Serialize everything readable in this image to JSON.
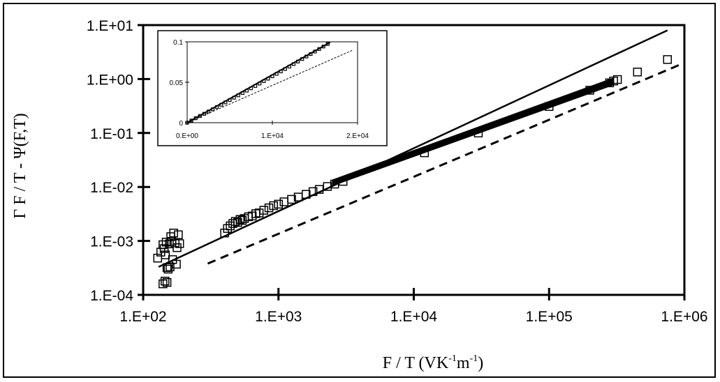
{
  "chart_data": [
    {
      "type": "scatter",
      "title": "",
      "xlabel": "F / T (VK-1m-1)",
      "xlabel_parts": {
        "main": "F / T  (VK",
        "sup1": "-1",
        "mid": "m",
        "sup2": "-1",
        "end": ")"
      },
      "ylabel": "Γ F / T - Ψ(F,T)",
      "xscale": "log",
      "yscale": "log",
      "xlim": [
        100,
        1000000
      ],
      "ylim": [
        0.0001,
        10
      ],
      "x_ticks": [
        100,
        1000,
        10000,
        100000,
        1000000
      ],
      "x_tick_labels": [
        "1.E+02",
        "1.E+03",
        "1.E+04",
        "1.E+05",
        "1.E+06"
      ],
      "y_ticks": [
        0.0001,
        0.001,
        0.01,
        0.1,
        1,
        10
      ],
      "y_tick_labels": [
        "1.E-04",
        "1.E-03",
        "1.E-02",
        "1.E-01",
        "1.E+00",
        "1.E+01"
      ],
      "grid": false,
      "series": [
        {
          "style": "markers",
          "marker": "open-square",
          "x": [
            128,
            135,
            140,
            143,
            146,
            148,
            150,
            153,
            156,
            160,
            163,
            168,
            172,
            176,
            182,
            186,
            140,
            145,
            150,
            158,
            165,
            178,
            400,
            420,
            440,
            460,
            480,
            500,
            520,
            540,
            560,
            600,
            640,
            680,
            720,
            780,
            850,
            920,
            1000,
            1100,
            1250,
            1400,
            1600,
            1800,
            2000,
            2300,
            2600,
            3000,
            12000,
            30000,
            100000,
            200000,
            280000,
            300000,
            320000,
            450000,
            750000
          ],
          "y": [
            0.00048,
            0.00062,
            0.00085,
            0.00072,
            0.00055,
            0.00095,
            0.00032,
            0.0003,
            0.00088,
            0.0012,
            0.00098,
            0.0014,
            0.00092,
            0.00037,
            0.0013,
            0.00089,
            0.00016,
            0.00018,
            0.00017,
            0.00033,
            0.00045,
            0.00075,
            0.0014,
            0.0017,
            0.0019,
            0.0021,
            0.0023,
            0.0022,
            0.0025,
            0.0024,
            0.0026,
            0.0028,
            0.0029,
            0.0032,
            0.0033,
            0.0037,
            0.0041,
            0.0045,
            0.0048,
            0.0053,
            0.0059,
            0.0065,
            0.0073,
            0.0082,
            0.009,
            0.0102,
            0.0113,
            0.0127,
            0.043,
            0.1,
            0.31,
            0.62,
            0.85,
            0.92,
            0.98,
            1.35,
            2.3
          ]
        },
        {
          "style": "solid-line",
          "x": [
            130,
            750000
          ],
          "y": [
            0.00033,
            8
          ]
        },
        {
          "style": "dashed-line",
          "x": [
            300,
            1000000
          ],
          "y": [
            0.00038,
            2.0
          ]
        }
      ]
    },
    {
      "type": "scatter",
      "title": "",
      "xscale": "linear",
      "yscale": "linear",
      "xlim": [
        0,
        20000
      ],
      "ylim": [
        0,
        0.1
      ],
      "x_ticks": [
        0,
        10000,
        20000
      ],
      "x_tick_labels": [
        "0.E+00",
        "1.E+04",
        "2.E+04"
      ],
      "y_ticks": [
        0,
        0.05,
        0.1
      ],
      "y_tick_labels": [
        "0",
        "0.05",
        "0.1"
      ],
      "grid": false,
      "series": [
        {
          "style": "markers",
          "marker": "open-square",
          "x": [
            0,
            500,
            1000,
            1500,
            2000,
            2500,
            3000,
            3500,
            4000,
            4500,
            5000,
            5500,
            6000,
            6500,
            7000,
            7500,
            8000,
            8500,
            9000,
            9500,
            10000,
            10500,
            11000,
            11500,
            12000,
            12500,
            13000,
            13500,
            14000,
            14500,
            15000,
            15500,
            16000,
            16500
          ],
          "y": [
            0,
            0.0027,
            0.0055,
            0.0083,
            0.011,
            0.0138,
            0.0166,
            0.0194,
            0.0222,
            0.0251,
            0.028,
            0.0309,
            0.0338,
            0.0367,
            0.0396,
            0.0425,
            0.0454,
            0.0484,
            0.0514,
            0.0544,
            0.0574,
            0.0604,
            0.0634,
            0.0664,
            0.0694,
            0.0725,
            0.0756,
            0.0787,
            0.0818,
            0.0849,
            0.088,
            0.0911,
            0.0942,
            0.0973
          ]
        },
        {
          "style": "solid-line",
          "x": [
            0,
            16800
          ],
          "y": [
            0,
            0.0995
          ]
        },
        {
          "style": "dashed-line",
          "x": [
            0,
            19500
          ],
          "y": [
            0,
            0.09
          ]
        }
      ]
    }
  ]
}
